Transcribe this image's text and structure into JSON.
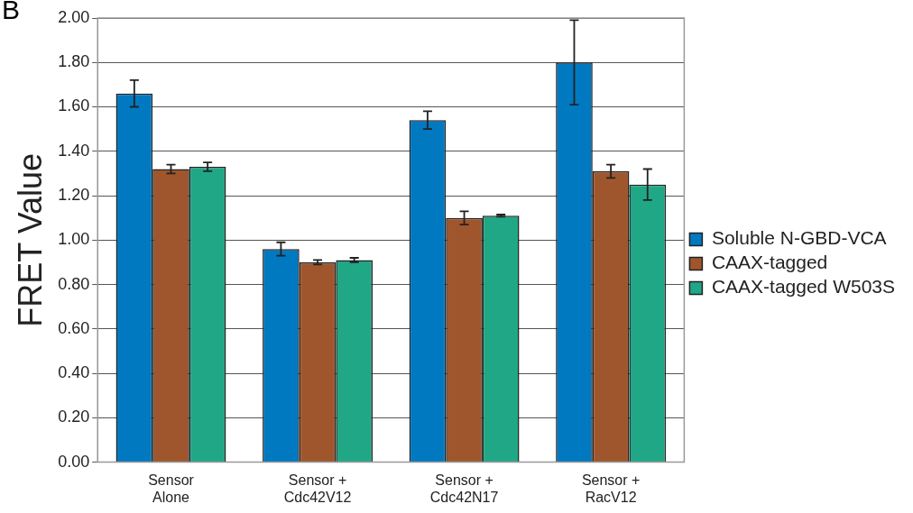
{
  "chart_data": {
    "type": "bar",
    "ylabel": "FRET Value",
    "categories": [
      "Sensor\nAlone",
      "Sensor +\nCdc42V12",
      "Sensor +\nCdc42N17",
      "Sensor +\nRacV12"
    ],
    "series": [
      {
        "name": "Soluble N-GBD-VCA",
        "color": "#0079c1",
        "values": [
          1.66,
          0.96,
          1.54,
          1.8
        ],
        "errors": [
          0.06,
          0.03,
          0.04,
          0.19
        ]
      },
      {
        "name": "CAAX-tagged",
        "color": "#a0562c",
        "values": [
          1.32,
          0.9,
          1.1,
          1.31
        ],
        "errors": [
          0.02,
          0.01,
          0.03,
          0.03
        ]
      },
      {
        "name": "CAAX-tagged W503S",
        "color": "#20a886",
        "values": [
          1.33,
          0.91,
          1.11,
          1.25
        ],
        "errors": [
          0.02,
          0.01,
          0.005,
          0.07
        ]
      }
    ],
    "ylim": [
      0,
      2
    ],
    "yticks": [
      {
        "value": 0,
        "label": "0.00"
      },
      {
        "value": 0.2,
        "label": "0.20"
      },
      {
        "value": 0.4,
        "label": "0.40"
      },
      {
        "value": 0.6,
        "label": "0.60"
      },
      {
        "value": 0.8,
        "label": "0.80"
      },
      {
        "value": 1,
        "label": "1.00"
      },
      {
        "value": 1.2,
        "label": "1.20"
      },
      {
        "value": 1.4,
        "label": "1.40"
      },
      {
        "value": 1.6,
        "label": "1.60"
      },
      {
        "value": 1.8,
        "label": "1.80"
      },
      {
        "value": 2,
        "label": "2.00"
      }
    ],
    "grid": "y",
    "legend": "right",
    "annotations": [
      "B"
    ]
  }
}
